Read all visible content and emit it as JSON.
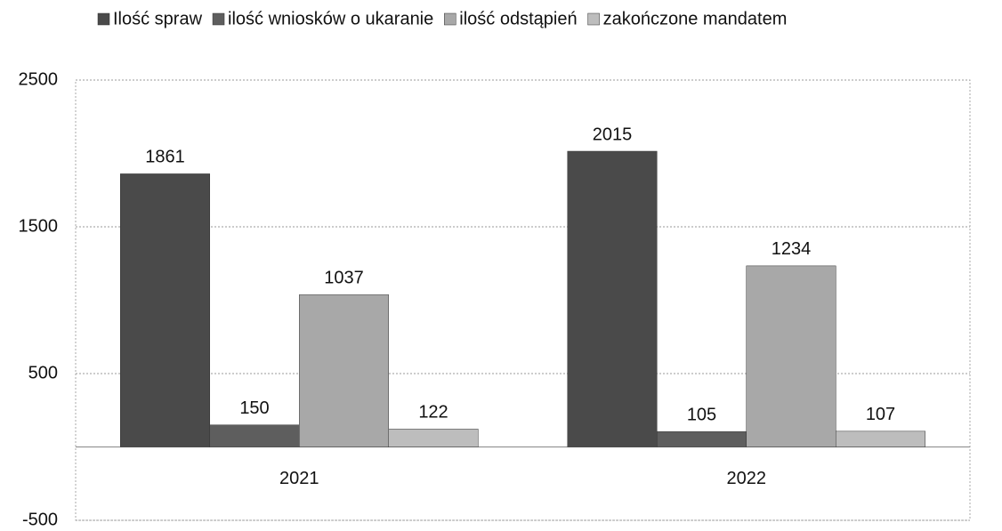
{
  "chart_data": {
    "type": "bar",
    "categories": [
      "2021",
      "2022"
    ],
    "series": [
      {
        "name": "Ilość spraw",
        "color": "#4a4a4a",
        "values": [
          1861,
          2015
        ]
      },
      {
        "name": "ilość wniosków o ukaranie",
        "color": "#5e5e5e",
        "values": [
          150,
          105
        ]
      },
      {
        "name": "ilość odstąpień",
        "color": "#a8a8a8",
        "values": [
          1037,
          1234
        ]
      },
      {
        "name": "zakończone mandatem",
        "color": "#bdbdbd",
        "values": [
          122,
          107
        ]
      }
    ],
    "ylim": [
      -500,
      2500
    ],
    "yticks": [
      -500,
      500,
      1500,
      2500
    ],
    "grid": true,
    "legend": "top"
  }
}
